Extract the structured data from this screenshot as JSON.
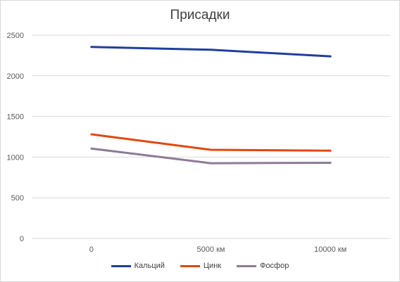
{
  "chart_data": {
    "type": "line",
    "title": "Присадки",
    "xlabel": "",
    "ylabel": "",
    "categories": [
      "0",
      "5000 км",
      "10000 км"
    ],
    "ylim": [
      0,
      2500
    ],
    "yticks": [
      "0",
      "500",
      "1000",
      "1500",
      "2000",
      "2500"
    ],
    "grid": true,
    "legend_position": "bottom",
    "series": [
      {
        "name": "Кальций",
        "color": "#1f3f9f",
        "values": [
          2355,
          2320,
          2240
        ]
      },
      {
        "name": "Цинк",
        "color": "#e0480f",
        "values": [
          1280,
          1090,
          1080
        ]
      },
      {
        "name": "Фосфор",
        "color": "#8c7b96",
        "values": [
          1105,
          925,
          930
        ]
      }
    ]
  }
}
